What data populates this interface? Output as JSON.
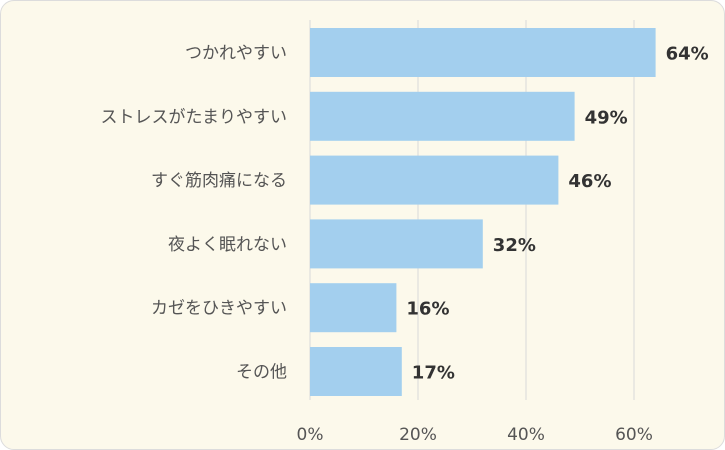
{
  "chart_data": {
    "type": "bar",
    "orientation": "horizontal",
    "categories": [
      "つかれやすい",
      "ストレスがたまりやすい",
      "すぐ筋肉痛になる",
      "夜よく眠れない",
      "カゼをひきやすい",
      "その他"
    ],
    "values": [
      64,
      49,
      46,
      32,
      16,
      17
    ],
    "value_labels": [
      "64%",
      "49%",
      "46%",
      "32%",
      "16%",
      "17%"
    ],
    "x_ticks": [
      0,
      20,
      40,
      60
    ],
    "x_tick_labels": [
      "0%",
      "20%",
      "40%",
      "60%"
    ],
    "xlim": [
      0,
      70
    ],
    "grid": true,
    "bar_color": "#a3cfee",
    "background_color": "#fcf9eb",
    "gridline_color": "#d9d9d9"
  }
}
